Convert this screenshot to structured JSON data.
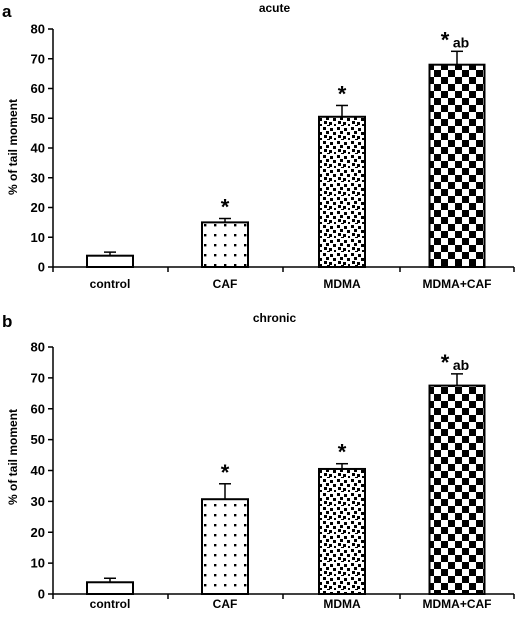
{
  "panels": [
    {
      "letter": "a",
      "title": "acute",
      "ylabel": "% of tail moment",
      "ylim": [
        0,
        80
      ],
      "yticks": [
        0,
        10,
        20,
        30,
        40,
        50,
        60,
        70,
        80
      ],
      "categories": [
        "control",
        "CAF",
        "MDMA",
        "MDMA+CAF"
      ],
      "values": [
        3.8,
        15.0,
        50.5,
        68.0
      ],
      "errors": [
        1.2,
        1.3,
        3.8,
        4.5
      ],
      "annotations": [
        "",
        "*",
        "*",
        "*ab"
      ]
    },
    {
      "letter": "b",
      "title": "chronic",
      "ylabel": "% of tail moment",
      "ylim": [
        0,
        80
      ],
      "yticks": [
        0,
        10,
        20,
        30,
        40,
        50,
        60,
        70,
        80
      ],
      "categories": [
        "control",
        "CAF",
        "MDMA",
        "MDMA+CAF"
      ],
      "values": [
        3.8,
        30.7,
        40.5,
        67.5
      ],
      "errors": [
        1.3,
        5.0,
        1.7,
        3.8
      ],
      "annotations": [
        "",
        "*",
        "*",
        "*ab"
      ]
    }
  ],
  "chart_data": [
    {
      "type": "bar",
      "title": "acute",
      "xlabel": "",
      "ylabel": "% of tail moment",
      "ylim": [
        0,
        80
      ],
      "categories": [
        "control",
        "CAF",
        "MDMA",
        "MDMA+CAF"
      ],
      "values": [
        3.8,
        15.0,
        50.5,
        68.0
      ],
      "error_bars": [
        1.2,
        1.3,
        3.8,
        4.5
      ],
      "grid": false,
      "annotations": [
        "",
        "*",
        "*",
        "*ab"
      ]
    },
    {
      "type": "bar",
      "title": "chronic",
      "xlabel": "",
      "ylabel": "% of tail moment",
      "ylim": [
        0,
        80
      ],
      "categories": [
        "control",
        "CAF",
        "MDMA",
        "MDMA+CAF"
      ],
      "values": [
        3.8,
        30.7,
        40.5,
        67.5
      ],
      "error_bars": [
        1.3,
        5.0,
        1.7,
        3.8
      ],
      "grid": false,
      "annotations": [
        "",
        "*",
        "*",
        "*ab"
      ]
    }
  ]
}
